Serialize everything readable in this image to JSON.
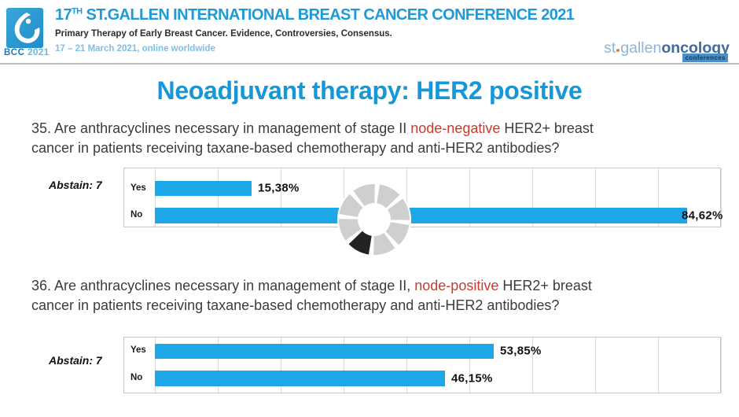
{
  "header": {
    "logo_text": "BCC",
    "logo_year": "2021",
    "title_num": "17",
    "title_sup": "TH",
    "title_rest": " ST.GALLEN INTERNATIONAL BREAST CANCER CONFERENCE 2021",
    "subtitle": "Primary Therapy of Early Breast Cancer. Evidence, Controversies, Consensus.",
    "dates": "17 – 21 March 2021, online worldwide",
    "brand": {
      "st": "st",
      "gallen": "gallen",
      "oncology": "oncology",
      "conferences": "conferences"
    }
  },
  "page_title": "Neoadjuvant therapy: HER2 positive",
  "questions": [
    {
      "line1_pre": "35. Are anthracyclines necessary in management of stage II ",
      "highlight": "node-negative",
      "line1_post": " HER2+ breast",
      "line2": "cancer in patients receiving taxane-based chemotherapy and anti-HER2 antibodies?",
      "abstain_label": "Abstain: 7"
    },
    {
      "line1_pre": "36. Are anthracyclines necessary in management of stage II, ",
      "highlight": "node-positive",
      "line1_post": " HER2+ breast",
      "line2": "cancer in patients receiving taxane-based chemotherapy and anti-HER2 antibodies?",
      "abstain_label": "Abstain: 7"
    }
  ],
  "chart_data": [
    {
      "type": "bar",
      "orientation": "horizontal",
      "title": "Q35: Anthracyclines in stage II node-negative HER2+ (taxane + anti-HER2)",
      "categories": [
        "Yes",
        "No"
      ],
      "values": [
        15.38,
        84.62
      ],
      "value_labels": [
        "15,38%",
        "84,62%"
      ],
      "abstain": 7,
      "xlim": [
        0,
        90
      ],
      "grid_step": 10,
      "grid": true,
      "legend": "none",
      "bar_color": "#1ea7e8"
    },
    {
      "type": "bar",
      "orientation": "horizontal",
      "title": "Q36: Anthracyclines in stage II node-positive HER2+ (taxane + anti-HER2)",
      "categories": [
        "Yes",
        "No"
      ],
      "values": [
        53.85,
        46.15
      ],
      "value_labels": [
        "53,85%",
        "46,15%"
      ],
      "abstain": 7,
      "xlim": [
        0,
        90
      ],
      "grid_step": 10,
      "grid": true,
      "legend": "none",
      "bar_color": "#1ea7e8"
    }
  ],
  "colors": {
    "accent_blue": "#1598da",
    "bar_blue": "#1ea7e8",
    "highlight_red": "#c93b2e",
    "header_blue": "#1e9ad8",
    "brand_light_blue": "#8cb6d8",
    "brand_dark_blue": "#3d6b9e",
    "spinner_gray": "#cfcfcf",
    "spinner_black": "#222222"
  },
  "spinner": {
    "state": "loading",
    "segments": 8,
    "active_segment_position": "bottom-left"
  }
}
